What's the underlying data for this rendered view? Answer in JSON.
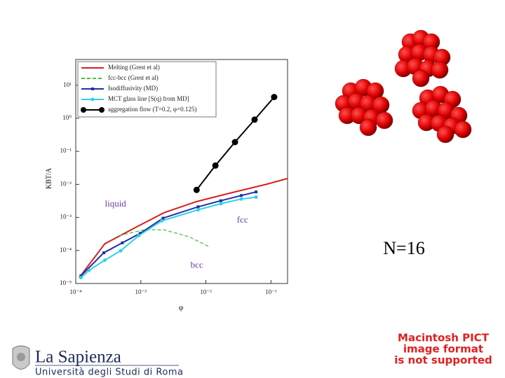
{
  "chart_data": {
    "type": "line",
    "y_label": "KBT/A",
    "x_label": "φ",
    "xscale": "log",
    "yscale": "log",
    "xlim": [
      0.0001,
      0.18
    ],
    "ylim": [
      1e-05,
      60
    ],
    "xticks": [
      {
        "value": 0.0001,
        "label": "10⁻⁴"
      },
      {
        "value": 0.001,
        "label": "10⁻³"
      },
      {
        "value": 0.01,
        "label": "10⁻²"
      },
      {
        "value": 0.1,
        "label": "10⁻¹"
      }
    ],
    "yticks": [
      {
        "value": 1e-05,
        "label": "10⁻⁵"
      },
      {
        "value": 0.0001,
        "label": "10⁻⁴"
      },
      {
        "value": 0.001,
        "label": "10⁻³"
      },
      {
        "value": 0.01,
        "label": "10⁻²"
      },
      {
        "value": 0.1,
        "label": "10⁻¹"
      },
      {
        "value": 1,
        "label": "10⁰"
      },
      {
        "value": 10,
        "label": "10¹"
      }
    ],
    "legend": "upper left",
    "series": [
      {
        "name": "Melting  (Grest et al)",
        "color": "#d62020",
        "dash": false,
        "marker": null,
        "x": [
          0.000113,
          0.00028,
          0.00098,
          0.0023,
          0.0071,
          0.024,
          0.084,
          0.178
        ],
        "values": [
          1.5e-05,
          0.00016,
          0.00059,
          0.0014,
          0.003,
          0.0055,
          0.01,
          0.015
        ]
      },
      {
        "name": "fcc-bcc (Grest et al)",
        "color": "#4cc040",
        "dash": true,
        "marker": null,
        "x": [
          0.00046,
          0.0011,
          0.0023,
          0.0055,
          0.0116
        ],
        "values": [
          0.00028,
          0.00042,
          0.00042,
          0.00026,
          0.000126
        ]
      },
      {
        "name": "Isodiffusivity (MD)",
        "color": "#1f2fa8",
        "dash": false,
        "marker": "square",
        "x": [
          0.00012,
          0.00027,
          0.00052,
          0.00098,
          0.0022,
          0.0076,
          0.017,
          0.035,
          0.059
        ],
        "values": [
          1.7e-05,
          8.5e-05,
          0.00017,
          0.00033,
          0.00095,
          0.0021,
          0.0032,
          0.0046,
          0.0059
        ]
      },
      {
        "name": "MCT glass line [S(q) from MD]",
        "color": "#30d0e8",
        "dash": false,
        "marker": "circle",
        "x": [
          0.00012,
          0.00016,
          0.00028,
          0.00049,
          0.00093,
          0.0021,
          0.0076,
          0.017,
          0.035,
          0.059
        ],
        "values": [
          1.5e-05,
          2.5e-05,
          5.1e-05,
          9.8e-05,
          0.00028,
          0.00079,
          0.0017,
          0.0026,
          0.0036,
          0.0041
        ]
      },
      {
        "name": "aggregation flow (T=0.2, φ=0.125)",
        "color": "#000000",
        "dash": false,
        "marker": "bigcircle",
        "x": [
          0.0072,
          0.014,
          0.028,
          0.056,
          0.112
        ],
        "values": [
          0.0068,
          0.037,
          0.19,
          0.91,
          4.4
        ]
      }
    ],
    "annotations": [
      {
        "text": "liquid",
        "x": 0.00028,
        "y": 0.0025
      },
      {
        "text": "fcc",
        "x": 0.03,
        "y": 0.0008
      },
      {
        "text": "bcc",
        "x": 0.0058,
        "y": 3.5e-05
      }
    ]
  },
  "slide": {
    "label": "N=16",
    "logo_title": "La Sapienza",
    "logo_subtitle": "Università degli Studi di Roma",
    "placeholder": [
      "Macintosh PICT",
      "image format",
      "is not supported"
    ]
  }
}
